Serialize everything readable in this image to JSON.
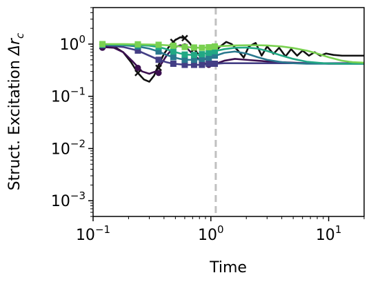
{
  "chart_data": {
    "type": "line",
    "title": "",
    "xlabel": "Time",
    "ylabel_main": "Struct. Excitation ",
    "ylabel_symbol": "Δr",
    "ylabel_sub": "c",
    "xscale": "log",
    "yscale": "log",
    "xlim": [
      0.1,
      20
    ],
    "ylim": [
      0.0005,
      5
    ],
    "x_ticks": [
      {
        "value": 0.1,
        "mantissa": "10",
        "exponent": "−1"
      },
      {
        "value": 1,
        "mantissa": "10",
        "exponent": "0"
      },
      {
        "value": 10,
        "mantissa": "10",
        "exponent": "1"
      }
    ],
    "y_ticks": [
      {
        "value": 0.001,
        "mantissa": "10",
        "exponent": "−3"
      },
      {
        "value": 0.01,
        "mantissa": "10",
        "exponent": "−2"
      },
      {
        "value": 0.1,
        "mantissa": "10",
        "exponent": "−1"
      },
      {
        "value": 1,
        "mantissa": "10",
        "exponent": "0"
      }
    ],
    "vline": {
      "x": 1.1,
      "color": "#c0c0c0",
      "style": "dashed"
    },
    "grid": false,
    "legend": "none",
    "series": [
      {
        "color": "#111111",
        "marker": "x",
        "x": [
          0.12,
          0.15,
          0.18,
          0.21,
          0.24,
          0.27,
          0.3,
          0.33,
          0.36,
          0.4,
          0.45,
          0.5,
          0.55,
          0.6,
          0.66,
          0.72,
          0.8,
          0.9,
          1.0,
          1.1,
          1.2,
          1.35,
          1.5,
          1.7,
          1.9,
          2.1,
          2.4,
          2.7,
          3.0,
          3.4,
          3.8,
          4.3,
          4.8,
          5.4,
          6.0,
          6.8,
          7.6,
          8.5,
          9.5,
          11,
          13,
          16,
          20
        ],
        "y": [
          0.95,
          0.9,
          0.7,
          0.45,
          0.28,
          0.21,
          0.19,
          0.25,
          0.4,
          0.65,
          0.95,
          1.2,
          1.35,
          1.3,
          1.05,
          0.8,
          0.6,
          0.52,
          0.58,
          0.75,
          0.9,
          1.1,
          1.0,
          0.75,
          0.55,
          0.9,
          1.05,
          0.6,
          0.9,
          0.65,
          0.85,
          0.58,
          0.8,
          0.6,
          0.75,
          0.6,
          0.7,
          0.6,
          0.66,
          0.62,
          0.6,
          0.6,
          0.6
        ],
        "marker_x": [
          0.12,
          0.24,
          0.36,
          0.48,
          0.6,
          0.72,
          0.84,
          0.96
        ],
        "marker_y": [
          0.9,
          0.28,
          0.35,
          1.1,
          1.3,
          0.8,
          0.55,
          0.52
        ]
      },
      {
        "color": "#3b0f4f",
        "marker": "o",
        "x": [
          0.12,
          0.15,
          0.18,
          0.22,
          0.26,
          0.3,
          0.34,
          0.38,
          0.42,
          0.48,
          0.55,
          0.62,
          0.7,
          0.8,
          0.9,
          1.0,
          1.1,
          1.3,
          1.6,
          2.0,
          2.5,
          3.2,
          4,
          5,
          6.5,
          8,
          10,
          13,
          16,
          20
        ],
        "y": [
          0.88,
          0.85,
          0.7,
          0.45,
          0.3,
          0.27,
          0.3,
          0.42,
          0.6,
          0.85,
          0.95,
          0.85,
          0.65,
          0.5,
          0.42,
          0.4,
          0.42,
          0.48,
          0.52,
          0.5,
          0.48,
          0.46,
          0.45,
          0.44,
          0.43,
          0.43,
          0.42,
          0.42,
          0.42,
          0.42
        ],
        "marker_x": [
          0.12,
          0.24,
          0.36,
          0.48,
          0.6,
          0.72,
          0.84,
          0.96
        ],
        "marker_y": [
          0.85,
          0.35,
          0.28,
          0.85,
          0.9,
          0.6,
          0.45,
          0.4
        ]
      },
      {
        "color": "#433e85",
        "marker": "s",
        "x": [
          0.12,
          0.18,
          0.24,
          0.3,
          0.36,
          0.42,
          0.48,
          0.55,
          0.62,
          0.7,
          0.8,
          0.9,
          1.0,
          1.1,
          1.3,
          1.6,
          2.0,
          3,
          4,
          6,
          9,
          13,
          20
        ],
        "y": [
          0.95,
          0.88,
          0.75,
          0.6,
          0.5,
          0.45,
          0.42,
          0.41,
          0.4,
          0.4,
          0.4,
          0.41,
          0.42,
          0.42,
          0.43,
          0.43,
          0.43,
          0.43,
          0.43,
          0.43,
          0.43,
          0.43,
          0.43
        ],
        "marker_x": [
          0.12,
          0.24,
          0.36,
          0.48,
          0.6,
          0.72,
          0.84,
          0.96,
          1.08
        ],
        "marker_y": [
          0.95,
          0.75,
          0.5,
          0.42,
          0.4,
          0.4,
          0.4,
          0.42,
          0.42
        ]
      },
      {
        "color": "#2a788e",
        "marker": "s",
        "x": [
          0.12,
          0.18,
          0.24,
          0.3,
          0.36,
          0.42,
          0.48,
          0.55,
          0.62,
          0.7,
          0.8,
          0.9,
          1.0,
          1.1,
          1.3,
          1.6,
          2.0,
          2.5,
          3,
          4,
          5,
          6.5,
          9,
          13,
          20
        ],
        "y": [
          0.97,
          0.95,
          0.9,
          0.82,
          0.72,
          0.62,
          0.56,
          0.52,
          0.5,
          0.5,
          0.51,
          0.53,
          0.56,
          0.6,
          0.68,
          0.72,
          0.66,
          0.56,
          0.5,
          0.45,
          0.43,
          0.42,
          0.42,
          0.42,
          0.42
        ],
        "marker_x": [
          0.12,
          0.24,
          0.36,
          0.48,
          0.6,
          0.72,
          0.84,
          0.96,
          1.08
        ],
        "marker_y": [
          0.97,
          0.9,
          0.72,
          0.56,
          0.5,
          0.5,
          0.52,
          0.55,
          0.6
        ]
      },
      {
        "color": "#22a884",
        "marker": "s",
        "x": [
          0.12,
          0.18,
          0.24,
          0.3,
          0.36,
          0.42,
          0.48,
          0.55,
          0.62,
          0.7,
          0.8,
          0.9,
          1.0,
          1.1,
          1.3,
          1.6,
          2.0,
          2.5,
          3,
          4,
          5,
          6.5,
          9,
          13,
          20
        ],
        "y": [
          0.98,
          0.97,
          0.96,
          0.93,
          0.88,
          0.8,
          0.72,
          0.66,
          0.63,
          0.62,
          0.63,
          0.66,
          0.7,
          0.74,
          0.8,
          0.85,
          0.86,
          0.82,
          0.74,
          0.6,
          0.52,
          0.46,
          0.43,
          0.42,
          0.42
        ],
        "marker_x": [
          0.12,
          0.24,
          0.36,
          0.48,
          0.6,
          0.72,
          0.84,
          0.96,
          1.08
        ],
        "marker_y": [
          0.98,
          0.96,
          0.88,
          0.72,
          0.63,
          0.62,
          0.64,
          0.68,
          0.73
        ]
      },
      {
        "color": "#7ad151",
        "marker": "s",
        "x": [
          0.12,
          0.18,
          0.24,
          0.3,
          0.36,
          0.42,
          0.48,
          0.55,
          0.62,
          0.7,
          0.8,
          0.9,
          1.0,
          1.1,
          1.3,
          1.6,
          2.0,
          2.5,
          3,
          4,
          5,
          6.5,
          8,
          10,
          13,
          16,
          20
        ],
        "y": [
          1.0,
          1.0,
          0.99,
          0.98,
          0.97,
          0.95,
          0.93,
          0.9,
          0.88,
          0.86,
          0.85,
          0.86,
          0.88,
          0.9,
          0.92,
          0.94,
          0.95,
          0.95,
          0.94,
          0.9,
          0.84,
          0.75,
          0.66,
          0.56,
          0.48,
          0.45,
          0.44
        ],
        "marker_x": [
          0.12,
          0.24,
          0.36,
          0.48,
          0.6,
          0.72,
          0.84,
          0.96,
          1.08
        ],
        "marker_y": [
          1.0,
          0.99,
          0.97,
          0.93,
          0.88,
          0.86,
          0.85,
          0.87,
          0.9
        ]
      }
    ]
  }
}
